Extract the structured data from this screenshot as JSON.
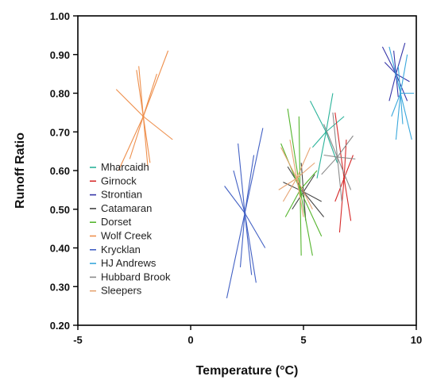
{
  "chart_data": {
    "type": "scatter",
    "title": "",
    "xlabel": "Temperature (°C)",
    "ylabel": "Runoff Ratio",
    "xlim": [
      -5,
      10
    ],
    "ylim": [
      0.2,
      1.0
    ],
    "x_ticks": [
      "-5",
      "0",
      "5",
      "10"
    ],
    "y_ticks": [
      "0.20",
      "0.30",
      "0.40",
      "0.50",
      "0.60",
      "0.70",
      "0.80",
      "0.90",
      "1.00"
    ],
    "grid": false,
    "legend_position": "left",
    "series": [
      {
        "name": "Mharcaidh",
        "color": "#2bb39a",
        "center": [
          6.0,
          0.7
        ],
        "ends": [
          [
            5.3,
            0.78
          ],
          [
            6.5,
            0.62
          ],
          [
            5.6,
            0.58
          ],
          [
            6.3,
            0.8
          ],
          [
            5.4,
            0.66
          ],
          [
            6.8,
            0.74
          ]
        ]
      },
      {
        "name": "Girnock",
        "color": "#d62a2a",
        "center": [
          6.8,
          0.58
        ],
        "ends": [
          [
            6.4,
            0.75
          ],
          [
            7.1,
            0.47
          ],
          [
            6.6,
            0.44
          ],
          [
            6.9,
            0.68
          ],
          [
            6.4,
            0.52
          ],
          [
            7.2,
            0.64
          ]
        ]
      },
      {
        "name": "Strontian",
        "color": "#3535a8",
        "center": [
          9.1,
          0.85
        ],
        "ends": [
          [
            8.5,
            0.92
          ],
          [
            9.6,
            0.78
          ],
          [
            8.8,
            0.78
          ],
          [
            9.5,
            0.93
          ],
          [
            8.6,
            0.88
          ],
          [
            9.7,
            0.83
          ],
          [
            9.0,
            0.91
          ],
          [
            9.2,
            0.79
          ]
        ]
      },
      {
        "name": "Catamaran",
        "color": "#444444",
        "center": [
          5.0,
          0.545
        ],
        "ends": [
          [
            4.3,
            0.61
          ],
          [
            5.9,
            0.48
          ],
          [
            4.5,
            0.5
          ],
          [
            5.5,
            0.59
          ],
          [
            4.1,
            0.57
          ],
          [
            5.8,
            0.52
          ],
          [
            4.9,
            0.62
          ],
          [
            5.1,
            0.47
          ]
        ]
      },
      {
        "name": "Dorset",
        "color": "#55b52e",
        "center": [
          4.85,
          0.55
        ],
        "ends": [
          [
            4.3,
            0.76
          ],
          [
            5.4,
            0.38
          ],
          [
            4.0,
            0.67
          ],
          [
            5.8,
            0.43
          ],
          [
            4.9,
            0.38
          ],
          [
            4.8,
            0.74
          ],
          [
            4.2,
            0.48
          ],
          [
            5.6,
            0.6
          ]
        ]
      },
      {
        "name": "Wolf Creek",
        "color": "#ee8f4c",
        "center": [
          -2.1,
          0.74
        ],
        "ends": [
          [
            -1.0,
            0.91
          ],
          [
            -3.2,
            0.6
          ],
          [
            -2.4,
            0.86
          ],
          [
            -1.8,
            0.62
          ],
          [
            -3.3,
            0.81
          ],
          [
            -0.8,
            0.68
          ],
          [
            -2.7,
            0.63
          ],
          [
            -1.5,
            0.85
          ],
          [
            -2.3,
            0.87
          ],
          [
            -1.9,
            0.61
          ]
        ]
      },
      {
        "name": "Krycklan",
        "color": "#4361c4",
        "center": [
          2.4,
          0.49
        ],
        "ends": [
          [
            1.6,
            0.27
          ],
          [
            3.2,
            0.71
          ],
          [
            2.9,
            0.31
          ],
          [
            1.9,
            0.6
          ],
          [
            3.3,
            0.4
          ],
          [
            1.5,
            0.56
          ],
          [
            2.1,
            0.67
          ],
          [
            2.8,
            0.64
          ],
          [
            2.2,
            0.35
          ],
          [
            2.7,
            0.33
          ]
        ]
      },
      {
        "name": "HJ Andrews",
        "color": "#3aa8dc",
        "center": [
          9.3,
          0.8
        ],
        "ends": [
          [
            8.8,
            0.92
          ],
          [
            9.8,
            0.68
          ],
          [
            9.1,
            0.68
          ],
          [
            9.6,
            0.9
          ],
          [
            8.9,
            0.74
          ],
          [
            9.9,
            0.8
          ],
          [
            9.2,
            0.87
          ],
          [
            9.4,
            0.72
          ]
        ]
      },
      {
        "name": "Hubbard Brook",
        "color": "#8b8b8b",
        "center": [
          6.5,
          0.635
        ],
        "ends": [
          [
            5.9,
            0.72
          ],
          [
            7.1,
            0.55
          ],
          [
            5.8,
            0.59
          ],
          [
            7.2,
            0.69
          ],
          [
            6.3,
            0.75
          ],
          [
            6.7,
            0.52
          ],
          [
            5.9,
            0.64
          ],
          [
            7.3,
            0.63
          ]
        ]
      },
      {
        "name": "Sleepers",
        "color": "#e6a473",
        "center": [
          4.7,
          0.58
        ],
        "ends": [
          [
            4.0,
            0.66
          ],
          [
            5.4,
            0.5
          ],
          [
            3.9,
            0.55
          ],
          [
            5.5,
            0.62
          ],
          [
            4.4,
            0.68
          ],
          [
            5.0,
            0.48
          ],
          [
            4.1,
            0.52
          ],
          [
            5.3,
            0.66
          ]
        ]
      }
    ]
  }
}
